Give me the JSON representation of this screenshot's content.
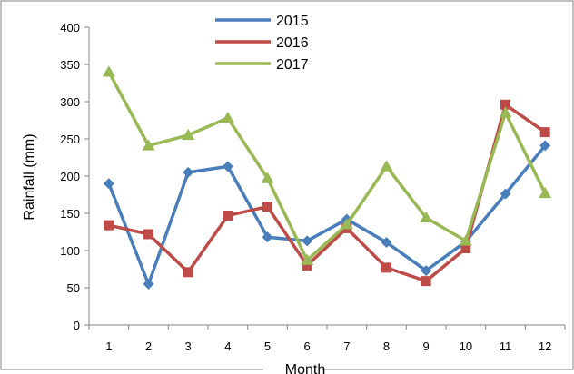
{
  "chart_data": {
    "type": "line",
    "title": "",
    "xlabel": "Month",
    "ylabel": "Rainfall (mm)",
    "categories": [
      "1",
      "2",
      "3",
      "4",
      "5",
      "6",
      "7",
      "8",
      "9",
      "10",
      "11",
      "12"
    ],
    "ylim": [
      0,
      400
    ],
    "yticks": [
      "0",
      "50",
      "100",
      "150",
      "200",
      "250",
      "300",
      "350",
      "400"
    ],
    "grid": false,
    "legend_position": "top-center",
    "series": [
      {
        "name": "2015",
        "color": "#4a7ebb",
        "marker": "diamond",
        "values": [
          190,
          55,
          205,
          213,
          118,
          113,
          142,
          111,
          73,
          112,
          176,
          241
        ]
      },
      {
        "name": "2016",
        "color": "#be4b48",
        "marker": "square",
        "values": [
          134,
          122,
          71,
          147,
          159,
          80,
          130,
          77,
          59,
          103,
          296,
          259
        ]
      },
      {
        "name": "2017",
        "color": "#98b954",
        "marker": "triangle",
        "values": [
          340,
          241,
          255,
          278,
          197,
          87,
          135,
          213,
          144,
          113,
          285,
          177
        ]
      }
    ]
  }
}
